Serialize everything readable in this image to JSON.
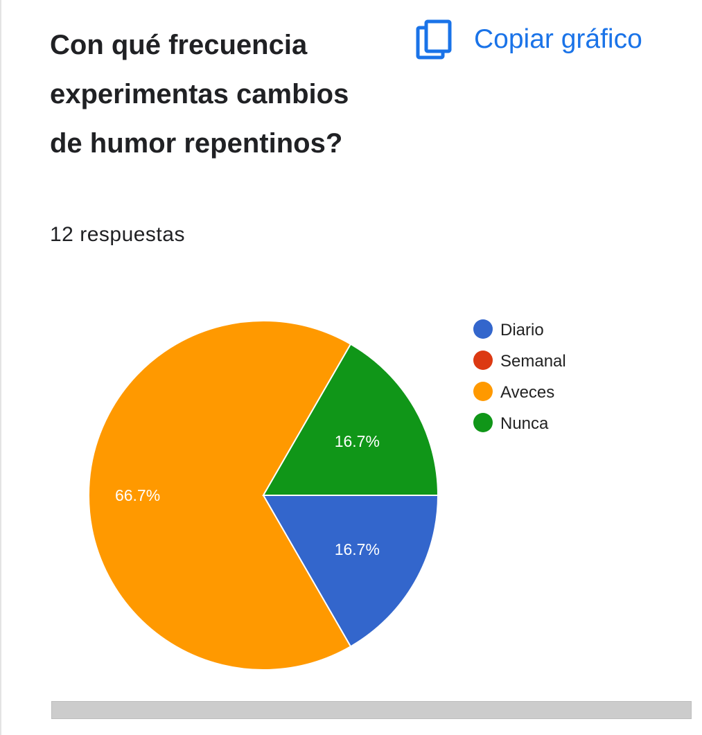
{
  "question": {
    "title": "Con qué frecuencia experimentas cambios de humor repentinos?",
    "responses_label": "12 respuestas"
  },
  "toolbar": {
    "copy_label": "Copiar gráfico",
    "copy_icon": "copy-icon"
  },
  "colors": {
    "accent": "#1a73e8",
    "diario": "#3366cc",
    "semanal": "#dc3912",
    "aveces": "#ff9900",
    "nunca": "#109618"
  },
  "chart_data": {
    "type": "pie",
    "title": "",
    "categories": [
      "Diario",
      "Semanal",
      "Aveces",
      "Nunca"
    ],
    "values": [
      2,
      0,
      8,
      2
    ],
    "percent_labels": [
      "16.7%",
      "",
      "66.7%",
      "16.7%"
    ],
    "colors": [
      "#3366cc",
      "#dc3912",
      "#ff9900",
      "#109618"
    ],
    "legend_position": "right",
    "start_angle_deg": 90,
    "direction": "clockwise-from-3-oclock"
  }
}
